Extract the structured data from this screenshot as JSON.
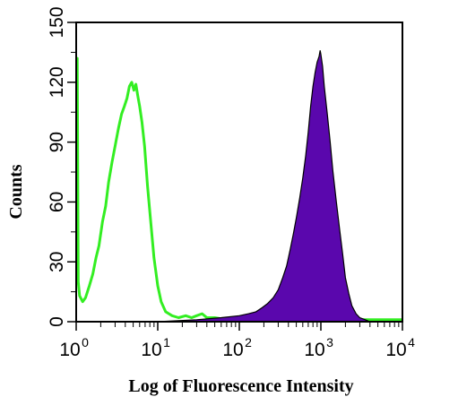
{
  "chart_data": {
    "type": "area",
    "title": "",
    "xlabel": "Log of Fluorescence Intensity",
    "ylabel": "Counts",
    "x_scale": "log",
    "xlim": [
      1,
      10000
    ],
    "ylim": [
      0,
      150
    ],
    "grid": false,
    "legend": "none",
    "x_ticks": [
      {
        "value": 1,
        "base": "10",
        "exp": "0"
      },
      {
        "value": 10,
        "base": "10",
        "exp": "1"
      },
      {
        "value": 100,
        "base": "10",
        "exp": "2"
      },
      {
        "value": 1000,
        "base": "10",
        "exp": "3"
      },
      {
        "value": 10000,
        "base": "10",
        "exp": "4"
      }
    ],
    "y_ticks": [
      "0",
      "30",
      "60",
      "90",
      "120",
      "150"
    ],
    "series": [
      {
        "style": "outline",
        "color": "#33ee22",
        "points": [
          [
            1.0,
            132
          ],
          [
            1.03,
            132
          ],
          [
            1.06,
            20
          ],
          [
            1.1,
            13
          ],
          [
            1.2,
            10
          ],
          [
            1.3,
            12
          ],
          [
            1.45,
            18
          ],
          [
            1.6,
            24
          ],
          [
            1.75,
            32
          ],
          [
            1.9,
            38
          ],
          [
            2.1,
            50
          ],
          [
            2.3,
            58
          ],
          [
            2.5,
            70
          ],
          [
            2.75,
            80
          ],
          [
            3.0,
            88
          ],
          [
            3.3,
            97
          ],
          [
            3.6,
            104
          ],
          [
            3.9,
            108
          ],
          [
            4.2,
            112
          ],
          [
            4.5,
            118
          ],
          [
            4.8,
            120
          ],
          [
            5.1,
            116
          ],
          [
            5.4,
            119
          ],
          [
            5.7,
            113
          ],
          [
            6.0,
            108
          ],
          [
            6.4,
            100
          ],
          [
            6.9,
            88
          ],
          [
            7.5,
            68
          ],
          [
            8.2,
            50
          ],
          [
            9.0,
            32
          ],
          [
            10.0,
            18
          ],
          [
            11,
            10
          ],
          [
            12.5,
            5
          ],
          [
            15,
            3
          ],
          [
            18,
            2
          ],
          [
            22,
            3
          ],
          [
            26,
            2
          ],
          [
            30,
            3
          ],
          [
            35,
            4
          ],
          [
            40,
            2
          ],
          [
            50,
            2
          ],
          [
            70,
            1
          ],
          [
            100,
            1
          ],
          [
            200,
            1
          ],
          [
            500,
            1
          ],
          [
            1000,
            1
          ],
          [
            3000,
            1
          ],
          [
            10000,
            1
          ]
        ]
      },
      {
        "style": "filled",
        "color": "#5a07ad",
        "points": [
          [
            1.0,
            0
          ],
          [
            10,
            0
          ],
          [
            30,
            1
          ],
          [
            60,
            2
          ],
          [
            100,
            3
          ],
          [
            130,
            4
          ],
          [
            160,
            5
          ],
          [
            190,
            7
          ],
          [
            220,
            9
          ],
          [
            260,
            12
          ],
          [
            300,
            16
          ],
          [
            340,
            22
          ],
          [
            380,
            28
          ],
          [
            420,
            36
          ],
          [
            460,
            44
          ],
          [
            500,
            52
          ],
          [
            550,
            62
          ],
          [
            600,
            72
          ],
          [
            650,
            83
          ],
          [
            700,
            95
          ],
          [
            750,
            108
          ],
          [
            800,
            118
          ],
          [
            850,
            125
          ],
          [
            900,
            130
          ],
          [
            950,
            133
          ],
          [
            980,
            136
          ],
          [
            1000,
            134
          ],
          [
            1050,
            128
          ],
          [
            1100,
            118
          ],
          [
            1200,
            104
          ],
          [
            1300,
            90
          ],
          [
            1400,
            76
          ],
          [
            1550,
            60
          ],
          [
            1700,
            46
          ],
          [
            1850,
            34
          ],
          [
            2000,
            22
          ],
          [
            2200,
            14
          ],
          [
            2400,
            8
          ],
          [
            2700,
            4
          ],
          [
            3000,
            2
          ],
          [
            3500,
            1
          ],
          [
            4000,
            0
          ],
          [
            10000,
            0
          ]
        ]
      }
    ]
  }
}
